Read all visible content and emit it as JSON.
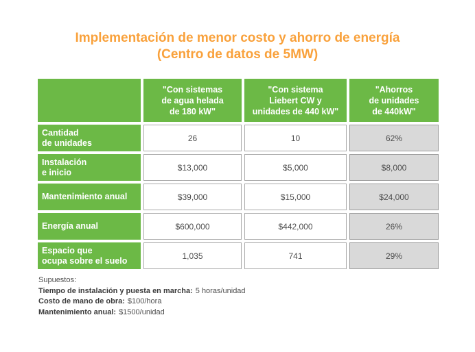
{
  "title": {
    "line1": "Implementación de menor costo y ahorro de energía",
    "line2": "(Centro de datos de 5MW)"
  },
  "colors": {
    "title_orange": "#F9A13B",
    "brand_green": "#6CB946",
    "savings_cell_gray": "#D9D9D9",
    "cell_border_gray": "#A9A9A9",
    "body_text_gray": "#4D4D4D"
  },
  "table": {
    "headers_display": [
      "\"Con sistemas\nde agua helada\nde 180 kW\"",
      "\"Con sistema\nLiebert CW y\nunidades de 440 kW\"",
      "\"Ahorros\nde unidades\nde 440kW\""
    ],
    "row_labels_display": [
      "Cantidad\nde unidades",
      "Instalación\ne inicio",
      "Mantenimiento anual",
      "Energía anual",
      "Espacio que\nocupa sobre el suelo"
    ]
  },
  "chart_data": {
    "type": "table",
    "title": "Implementación de menor costo y ahorro de energía (Centro de datos de 5MW)",
    "columns": [
      "",
      "\"Con sistemas de agua helada de 180 kW\"",
      "\"Con sistema Liebert CW y unidades de 440 kW\"",
      "\"Ahorros de unidades de 440kW\""
    ],
    "rows": [
      {
        "label": "Cantidad de unidades",
        "values": [
          "26",
          "10",
          "62%"
        ]
      },
      {
        "label": "Instalación e inicio",
        "values": [
          "$13,000",
          "$5,000",
          "$8,000"
        ]
      },
      {
        "label": "Mantenimiento anual",
        "values": [
          "$39,000",
          "$15,000",
          "$24,000"
        ]
      },
      {
        "label": "Energía anual",
        "values": [
          "$600,000",
          "$442,000",
          "26%"
        ]
      },
      {
        "label": "Espacio que ocupa sobre el suelo",
        "values": [
          "1,035",
          "741",
          "29%"
        ]
      }
    ]
  },
  "footnotes": {
    "heading": "Supuestos:",
    "items": [
      {
        "label": "Tiempo de instalación y puesta en marcha:",
        "value": "5 horas/unidad"
      },
      {
        "label": "Costo de mano de obra:",
        "value": "$100/hora"
      },
      {
        "label": "Mantenimiento anual:",
        "value": "$1500/unidad"
      }
    ]
  }
}
